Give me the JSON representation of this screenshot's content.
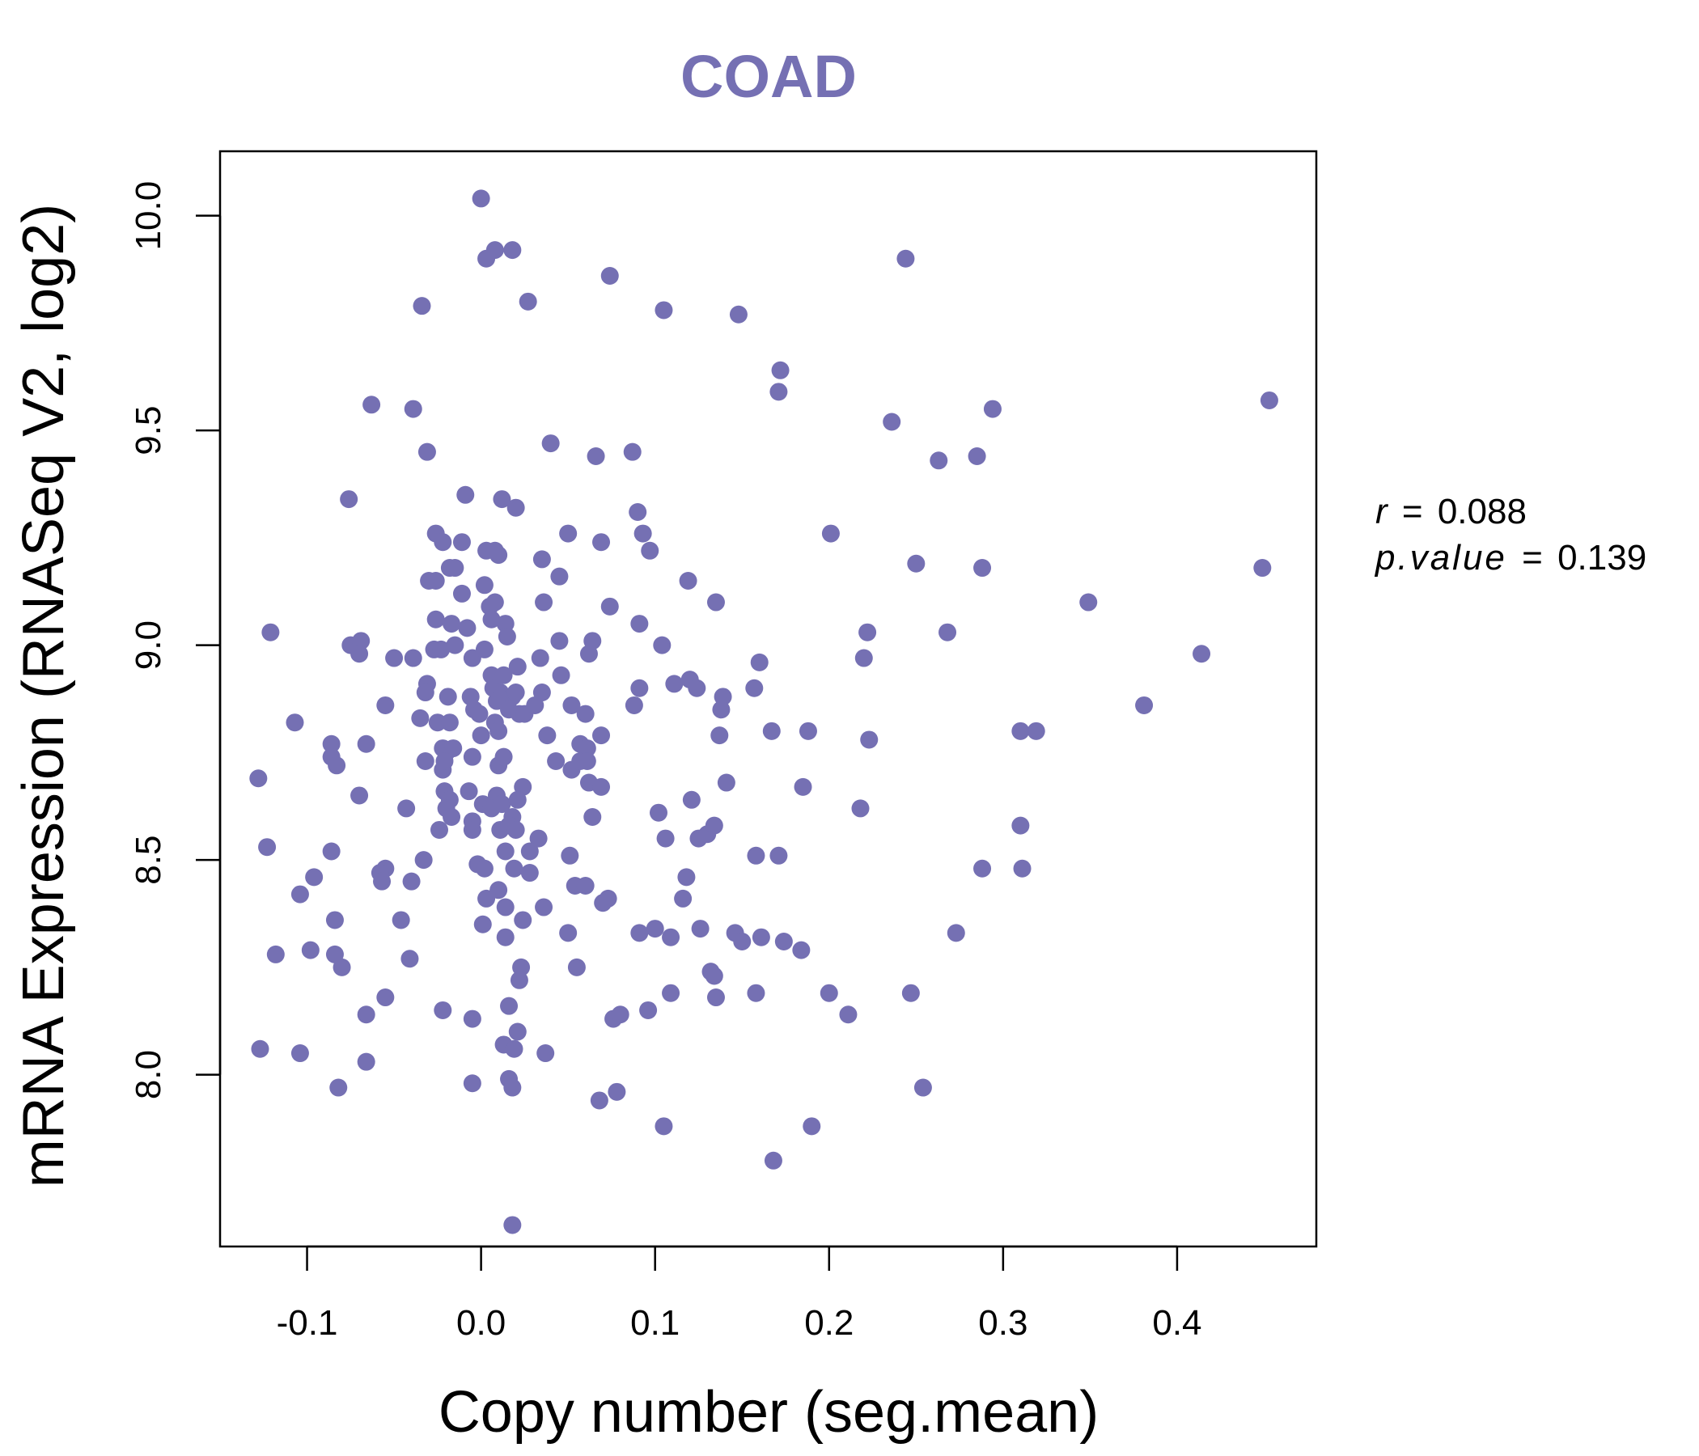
{
  "chart_data": {
    "type": "scatter",
    "title": "COAD",
    "xlabel": "Copy number (seg.mean)",
    "ylabel": "mRNA Expression (RNASeq V2, log2)",
    "xlim": [
      -0.15,
      0.48
    ],
    "ylim": [
      7.6,
      10.15
    ],
    "x_ticks": [
      -0.1,
      0.0,
      0.1,
      0.2,
      0.3,
      0.4
    ],
    "x_tick_labels": [
      "-0.1",
      "0.0",
      "0.1",
      "0.2",
      "0.3",
      "0.4"
    ],
    "y_ticks": [
      8.0,
      8.5,
      9.0,
      9.5,
      10.0
    ],
    "y_tick_labels": [
      "8.0",
      "8.5",
      "9.0",
      "9.5",
      "10.0"
    ],
    "grid": false,
    "point_color": "#7570b3",
    "stats": {
      "r_label": "r",
      "r_value": "0.088",
      "p_label": "p.value",
      "p_value": "0.139",
      "equals": "="
    },
    "points": [
      [
        0.0,
        10.04
      ],
      [
        0.003,
        9.9
      ],
      [
        0.008,
        9.92
      ],
      [
        0.018,
        9.92
      ],
      [
        0.027,
        9.8
      ],
      [
        0.074,
        9.86
      ],
      [
        0.105,
        9.78
      ],
      [
        0.148,
        9.77
      ],
      [
        0.244,
        9.9
      ],
      [
        -0.034,
        9.79
      ],
      [
        0.172,
        9.64
      ],
      [
        0.171,
        9.59
      ],
      [
        0.236,
        9.52
      ],
      [
        0.294,
        9.55
      ],
      [
        0.453,
        9.57
      ],
      [
        -0.063,
        9.56
      ],
      [
        -0.039,
        9.55
      ],
      [
        -0.031,
        9.45
      ],
      [
        0.04,
        9.47
      ],
      [
        0.066,
        9.44
      ],
      [
        0.087,
        9.45
      ],
      [
        0.263,
        9.43
      ],
      [
        0.285,
        9.44
      ],
      [
        -0.076,
        9.34
      ],
      [
        -0.009,
        9.35
      ],
      [
        0.012,
        9.34
      ],
      [
        0.02,
        9.32
      ],
      [
        0.09,
        9.31
      ],
      [
        -0.026,
        9.26
      ],
      [
        -0.022,
        9.24
      ],
      [
        -0.011,
        9.24
      ],
      [
        0.05,
        9.26
      ],
      [
        0.093,
        9.26
      ],
      [
        0.201,
        9.26
      ],
      [
        0.003,
        9.22
      ],
      [
        0.008,
        9.22
      ],
      [
        0.01,
        9.21
      ],
      [
        0.035,
        9.2
      ],
      [
        0.069,
        9.24
      ],
      [
        0.097,
        9.22
      ],
      [
        -0.03,
        9.15
      ],
      [
        -0.026,
        9.15
      ],
      [
        -0.015,
        9.18
      ],
      [
        -0.018,
        9.18
      ],
      [
        0.045,
        9.16
      ],
      [
        0.119,
        9.15
      ],
      [
        0.25,
        9.19
      ],
      [
        0.288,
        9.18
      ],
      [
        0.449,
        9.18
      ],
      [
        -0.011,
        9.12
      ],
      [
        0.002,
        9.14
      ],
      [
        0.005,
        9.09
      ],
      [
        0.008,
        9.1
      ],
      [
        0.036,
        9.1
      ],
      [
        0.074,
        9.09
      ],
      [
        0.135,
        9.1
      ],
      [
        0.349,
        9.1
      ],
      [
        -0.026,
        9.06
      ],
      [
        -0.017,
        9.05
      ],
      [
        -0.008,
        9.04
      ],
      [
        0.006,
        9.06
      ],
      [
        0.014,
        9.05
      ],
      [
        0.015,
        9.02
      ],
      [
        0.091,
        9.05
      ],
      [
        0.222,
        9.03
      ],
      [
        0.268,
        9.03
      ],
      [
        -0.121,
        9.03
      ],
      [
        -0.075,
        9.0
      ],
      [
        -0.069,
        9.01
      ],
      [
        -0.07,
        8.98
      ],
      [
        -0.05,
        8.97
      ],
      [
        -0.039,
        8.97
      ],
      [
        -0.027,
        8.99
      ],
      [
        -0.023,
        8.99
      ],
      [
        -0.015,
        9.0
      ],
      [
        -0.005,
        8.97
      ],
      [
        0.002,
        8.99
      ],
      [
        0.045,
        9.01
      ],
      [
        0.062,
        8.98
      ],
      [
        0.064,
        9.01
      ],
      [
        0.104,
        9.0
      ],
      [
        0.22,
        8.97
      ],
      [
        0.414,
        8.98
      ],
      [
        0.034,
        8.97
      ],
      [
        0.021,
        8.95
      ],
      [
        0.16,
        8.96
      ],
      [
        0.006,
        8.93
      ],
      [
        0.013,
        8.93
      ],
      [
        -0.031,
        8.91
      ],
      [
        -0.032,
        8.89
      ],
      [
        0.007,
        8.9
      ],
      [
        0.011,
        8.89
      ],
      [
        0.018,
        8.88
      ],
      [
        0.02,
        8.89
      ],
      [
        0.035,
        8.89
      ],
      [
        0.046,
        8.93
      ],
      [
        0.091,
        8.9
      ],
      [
        0.111,
        8.91
      ],
      [
        0.12,
        8.92
      ],
      [
        0.124,
        8.9
      ],
      [
        0.139,
        8.88
      ],
      [
        0.157,
        8.9
      ],
      [
        -0.055,
        8.86
      ],
      [
        -0.019,
        8.88
      ],
      [
        -0.006,
        8.88
      ],
      [
        -0.004,
        8.85
      ],
      [
        -0.001,
        8.84
      ],
      [
        0.009,
        8.87
      ],
      [
        0.016,
        8.85
      ],
      [
        0.022,
        8.84
      ],
      [
        0.025,
        8.84
      ],
      [
        0.031,
        8.86
      ],
      [
        0.052,
        8.86
      ],
      [
        0.06,
        8.84
      ],
      [
        0.088,
        8.86
      ],
      [
        0.138,
        8.85
      ],
      [
        0.381,
        8.86
      ],
      [
        -0.107,
        8.82
      ],
      [
        -0.035,
        8.83
      ],
      [
        -0.025,
        8.82
      ],
      [
        -0.018,
        8.82
      ],
      [
        0.008,
        8.82
      ],
      [
        0.01,
        8.8
      ],
      [
        0.038,
        8.79
      ],
      [
        0.069,
        8.79
      ],
      [
        0.137,
        8.79
      ],
      [
        0.167,
        8.8
      ],
      [
        0.188,
        8.8
      ],
      [
        0.31,
        8.8
      ],
      [
        0.319,
        8.8
      ],
      [
        -0.086,
        8.77
      ],
      [
        -0.066,
        8.77
      ],
      [
        -0.022,
        8.76
      ],
      [
        -0.02,
        8.75
      ],
      [
        -0.016,
        8.76
      ],
      [
        0.0,
        8.79
      ],
      [
        0.057,
        8.77
      ],
      [
        0.061,
        8.76
      ],
      [
        0.223,
        8.78
      ],
      [
        -0.086,
        8.74
      ],
      [
        -0.083,
        8.72
      ],
      [
        -0.032,
        8.73
      ],
      [
        -0.022,
        8.71
      ],
      [
        -0.021,
        8.73
      ],
      [
        -0.005,
        8.74
      ],
      [
        0.01,
        8.72
      ],
      [
        0.013,
        8.74
      ],
      [
        0.043,
        8.73
      ],
      [
        0.052,
        8.71
      ],
      [
        0.057,
        8.73
      ],
      [
        0.061,
        8.73
      ],
      [
        -0.128,
        8.69
      ],
      [
        -0.07,
        8.65
      ],
      [
        -0.021,
        8.66
      ],
      [
        -0.018,
        8.64
      ],
      [
        -0.007,
        8.66
      ],
      [
        0.009,
        8.65
      ],
      [
        0.024,
        8.67
      ],
      [
        0.062,
        8.68
      ],
      [
        0.069,
        8.67
      ],
      [
        0.141,
        8.68
      ],
      [
        0.185,
        8.67
      ],
      [
        -0.043,
        8.62
      ],
      [
        -0.02,
        8.62
      ],
      [
        -0.017,
        8.6
      ],
      [
        -0.024,
        8.57
      ],
      [
        -0.005,
        8.59
      ],
      [
        0.001,
        8.63
      ],
      [
        0.006,
        8.62
      ],
      [
        0.012,
        8.63
      ],
      [
        0.018,
        8.6
      ],
      [
        0.021,
        8.64
      ],
      [
        0.064,
        8.6
      ],
      [
        0.102,
        8.61
      ],
      [
        0.121,
        8.64
      ],
      [
        0.218,
        8.62
      ],
      [
        -0.005,
        8.57
      ],
      [
        0.011,
        8.57
      ],
      [
        0.016,
        8.58
      ],
      [
        0.02,
        8.57
      ],
      [
        0.033,
        8.55
      ],
      [
        0.106,
        8.55
      ],
      [
        0.125,
        8.55
      ],
      [
        0.13,
        8.56
      ],
      [
        0.134,
        8.58
      ],
      [
        0.31,
        8.58
      ],
      [
        -0.123,
        8.53
      ],
      [
        -0.086,
        8.52
      ],
      [
        0.014,
        8.52
      ],
      [
        0.028,
        8.52
      ],
      [
        0.051,
        8.51
      ],
      [
        0.158,
        8.51
      ],
      [
        0.171,
        8.51
      ],
      [
        -0.033,
        8.5
      ],
      [
        -0.002,
        8.49
      ],
      [
        0.002,
        8.48
      ],
      [
        -0.055,
        8.48
      ],
      [
        -0.058,
        8.47
      ],
      [
        -0.057,
        8.45
      ],
      [
        -0.096,
        8.46
      ],
      [
        0.019,
        8.48
      ],
      [
        0.028,
        8.47
      ],
      [
        0.118,
        8.46
      ],
      [
        0.288,
        8.48
      ],
      [
        0.311,
        8.48
      ],
      [
        -0.04,
        8.45
      ],
      [
        -0.104,
        8.42
      ],
      [
        0.01,
        8.43
      ],
      [
        0.003,
        8.41
      ],
      [
        0.054,
        8.44
      ],
      [
        0.06,
        8.44
      ],
      [
        0.073,
        8.41
      ],
      [
        0.07,
        8.4
      ],
      [
        0.116,
        8.41
      ],
      [
        0.014,
        8.39
      ],
      [
        0.036,
        8.39
      ],
      [
        -0.084,
        8.36
      ],
      [
        -0.046,
        8.36
      ],
      [
        0.001,
        8.35
      ],
      [
        0.024,
        8.36
      ],
      [
        0.05,
        8.33
      ],
      [
        0.091,
        8.33
      ],
      [
        0.1,
        8.34
      ],
      [
        0.126,
        8.34
      ],
      [
        0.146,
        8.33
      ],
      [
        0.15,
        8.31
      ],
      [
        0.161,
        8.32
      ],
      [
        0.174,
        8.31
      ],
      [
        0.273,
        8.33
      ],
      [
        0.014,
        8.32
      ],
      [
        0.109,
        8.32
      ],
      [
        -0.098,
        8.29
      ],
      [
        -0.118,
        8.28
      ],
      [
        -0.084,
        8.28
      ],
      [
        -0.041,
        8.27
      ],
      [
        0.184,
        8.29
      ],
      [
        -0.08,
        8.25
      ],
      [
        0.023,
        8.25
      ],
      [
        0.022,
        8.22
      ],
      [
        0.055,
        8.25
      ],
      [
        0.132,
        8.24
      ],
      [
        0.134,
        8.23
      ],
      [
        -0.055,
        8.18
      ],
      [
        0.109,
        8.19
      ],
      [
        0.135,
        8.18
      ],
      [
        0.158,
        8.19
      ],
      [
        0.2,
        8.19
      ],
      [
        0.247,
        8.19
      ],
      [
        0.016,
        8.16
      ],
      [
        -0.066,
        8.14
      ],
      [
        -0.022,
        8.15
      ],
      [
        0.076,
        8.13
      ],
      [
        0.08,
        8.14
      ],
      [
        0.096,
        8.15
      ],
      [
        0.211,
        8.14
      ],
      [
        -0.005,
        8.13
      ],
      [
        0.013,
        8.07
      ],
      [
        0.019,
        8.06
      ],
      [
        0.021,
        8.1
      ],
      [
        0.037,
        8.05
      ],
      [
        -0.127,
        8.06
      ],
      [
        -0.104,
        8.05
      ],
      [
        -0.066,
        8.03
      ],
      [
        -0.005,
        7.98
      ],
      [
        0.016,
        7.99
      ],
      [
        0.018,
        7.97
      ],
      [
        -0.082,
        7.97
      ],
      [
        0.068,
        7.94
      ],
      [
        0.078,
        7.96
      ],
      [
        0.254,
        7.97
      ],
      [
        0.105,
        7.88
      ],
      [
        0.19,
        7.88
      ],
      [
        0.168,
        7.8
      ],
      [
        0.018,
        7.65
      ]
    ]
  }
}
